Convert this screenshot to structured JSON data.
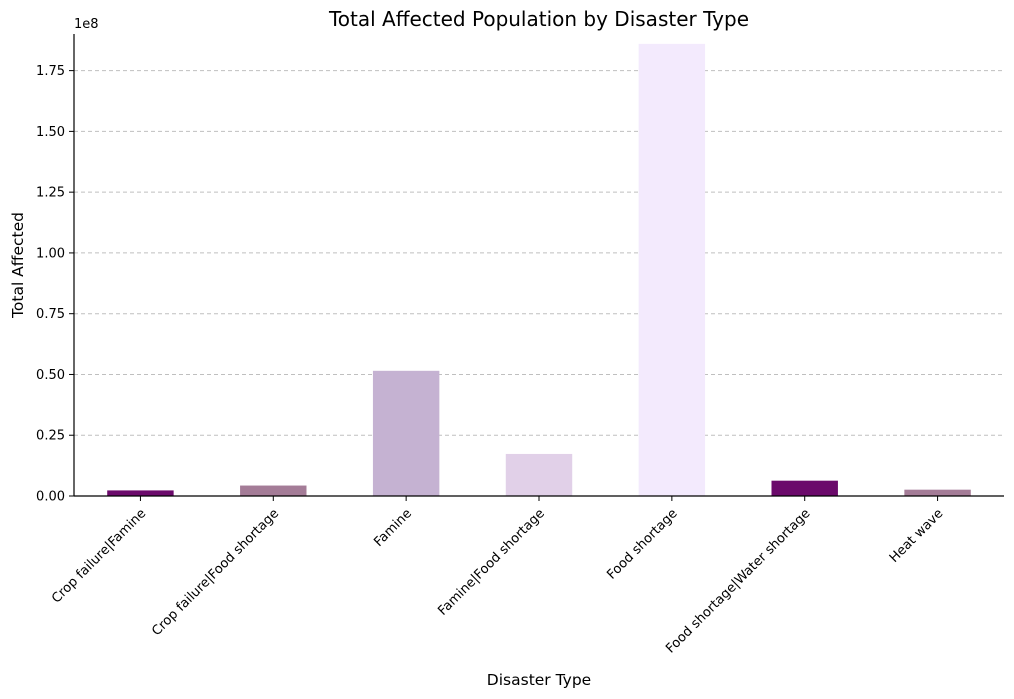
{
  "chart_data": {
    "type": "bar",
    "title": "Total Affected Population by Disaster Type",
    "xlabel": "Disaster Type",
    "ylabel": "Total Affected",
    "offset_text": "1e8",
    "categories": [
      "Crop failure|Famine",
      "Crop failure|Food shortage",
      "Famine",
      "Famine|Food shortage",
      "Food shortage",
      "Food shortage|Water shortage",
      "Heat wave"
    ],
    "values": [
      2300000,
      4300000,
      51500000,
      17300000,
      186000000,
      6300000,
      2600000
    ],
    "colors": [
      "#6b0a6b",
      "#a47c97",
      "#c5b2d2",
      "#e1d0e8",
      "#f3eafd",
      "#6b0a6b",
      "#a47c97"
    ],
    "ylim": [
      0,
      195000000
    ],
    "yticks": [
      0,
      25000000,
      50000000,
      75000000,
      100000000,
      125000000,
      150000000,
      175000000
    ],
    "ytick_labels": [
      "0.00",
      "0.25",
      "0.50",
      "0.75",
      "1.00",
      "1.25",
      "1.50",
      "1.75"
    ],
    "grid": "y-dashed",
    "legend": "none"
  }
}
